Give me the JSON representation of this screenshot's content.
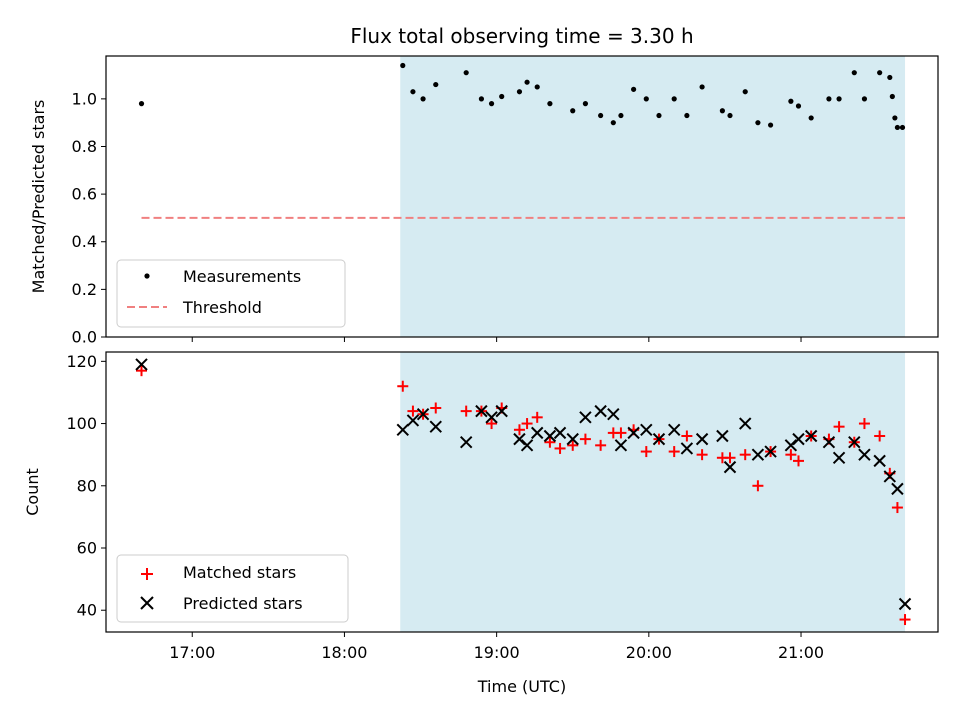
{
  "chart_data": [
    {
      "type": "scatter",
      "title": "Flux total observing time = 3.30 h",
      "ylabel": "Matched/Predicted stars",
      "xlabel": "",
      "xlim": [
        "16:26",
        "21:54"
      ],
      "ylim": [
        0,
        1.18
      ],
      "x_tick_labels": [
        "17:00",
        "18:00",
        "19:00",
        "20:00",
        "21:00"
      ],
      "y_ticks": [
        "0.0",
        "0.2",
        "0.4",
        "0.6",
        "0.8",
        "1.0"
      ],
      "shaded_span": [
        "18:22",
        "21:41"
      ],
      "legend_position": "lower-left",
      "colors": {
        "measurements": "#000000",
        "threshold": "#f08080",
        "span": "#add8e6"
      },
      "series": [
        {
          "name": "Measurements",
          "marker": "dot",
          "x": [
            "16:40",
            "18:23",
            "18:27",
            "18:31",
            "18:36",
            "18:48",
            "18:54",
            "18:58",
            "19:02",
            "19:09",
            "19:12",
            "19:16",
            "19:21",
            "19:30",
            "19:35",
            "19:41",
            "19:46",
            "19:49",
            "19:54",
            "19:59",
            "20:04",
            "20:10",
            "20:15",
            "20:21",
            "20:29",
            "20:32",
            "20:38",
            "20:43",
            "20:48",
            "20:56",
            "20:59",
            "21:04",
            "21:11",
            "21:15",
            "21:21",
            "21:25",
            "21:31",
            "21:35"
          ],
          "y": [
            0.98,
            1.14,
            1.03,
            1.0,
            1.06,
            1.11,
            1.0,
            0.98,
            1.01,
            1.03,
            1.07,
            1.05,
            0.98,
            0.95,
            0.98,
            0.93,
            0.9,
            0.93,
            1.04,
            1.0,
            0.93,
            1.0,
            0.93,
            1.05,
            0.95,
            0.93,
            1.03,
            0.9,
            0.89,
            0.99,
            0.97,
            0.92,
            1.0,
            1.0,
            1.11,
            1.0,
            1.11,
            1.09
          ]
        },
        {
          "name": "Threshold",
          "marker": "dashed-line",
          "x": [
            "16:40",
            "21:41"
          ],
          "y": [
            0.5,
            0.5
          ]
        }
      ],
      "extra_points": {
        "x": [
          "21:36",
          "21:37",
          "21:38",
          "21:40"
        ],
        "y": [
          1.01,
          0.92,
          0.88,
          0.88
        ]
      }
    },
    {
      "type": "scatter",
      "title": "",
      "ylabel": "Count",
      "xlabel": "Time (UTC)",
      "xlim": [
        "16:26",
        "21:54"
      ],
      "ylim": [
        33,
        123
      ],
      "x_tick_labels": [
        "17:00",
        "18:00",
        "19:00",
        "20:00",
        "21:00"
      ],
      "y_ticks": [
        "40",
        "60",
        "80",
        "100",
        "120"
      ],
      "shaded_span": [
        "18:22",
        "21:41"
      ],
      "legend_position": "lower-left",
      "colors": {
        "matched": "#ff0000",
        "predicted": "#000000",
        "span": "#add8e6"
      },
      "series": [
        {
          "name": "Matched stars",
          "marker": "plus",
          "x": [
            "16:40",
            "18:23",
            "18:27",
            "18:31",
            "18:36",
            "18:48",
            "18:54",
            "18:58",
            "19:02",
            "19:09",
            "19:12",
            "19:16",
            "19:21",
            "19:25",
            "19:30",
            "19:35",
            "19:41",
            "19:46",
            "19:49",
            "19:54",
            "19:59",
            "20:04",
            "20:10",
            "20:15",
            "20:21",
            "20:29",
            "20:32",
            "20:38",
            "20:43",
            "20:48",
            "20:56",
            "20:59",
            "21:04",
            "21:11",
            "21:15",
            "21:21",
            "21:25",
            "21:31",
            "21:35",
            "21:38",
            "21:41"
          ],
          "y": [
            117,
            112,
            104,
            103,
            105,
            104,
            104,
            100,
            105,
            98,
            100,
            102,
            94,
            92,
            93,
            95,
            93,
            97,
            97,
            98,
            91,
            95,
            91,
            96,
            90,
            89,
            89,
            90,
            80,
            91,
            90,
            88,
            96,
            95,
            99,
            94,
            100,
            96,
            84,
            73,
            37
          ]
        },
        {
          "name": "Predicted stars",
          "marker": "x",
          "x": [
            "16:40",
            "18:23",
            "18:27",
            "18:31",
            "18:36",
            "18:48",
            "18:54",
            "18:58",
            "19:02",
            "19:09",
            "19:12",
            "19:16",
            "19:21",
            "19:25",
            "19:30",
            "19:35",
            "19:41",
            "19:46",
            "19:49",
            "19:54",
            "19:59",
            "20:04",
            "20:10",
            "20:15",
            "20:21",
            "20:29",
            "20:32",
            "20:38",
            "20:43",
            "20:48",
            "20:56",
            "20:59",
            "21:04",
            "21:11",
            "21:15",
            "21:21",
            "21:25",
            "21:31",
            "21:35",
            "21:38",
            "21:41"
          ],
          "y": [
            119,
            98,
            101,
            103,
            99,
            94,
            104,
            102,
            104,
            95,
            93,
            97,
            96,
            97,
            95,
            102,
            104,
            103,
            93,
            97,
            98,
            95,
            98,
            92,
            95,
            96,
            86,
            100,
            90,
            91,
            93,
            95,
            96,
            94,
            89,
            94,
            90,
            88,
            83,
            79,
            42
          ]
        }
      ]
    }
  ]
}
